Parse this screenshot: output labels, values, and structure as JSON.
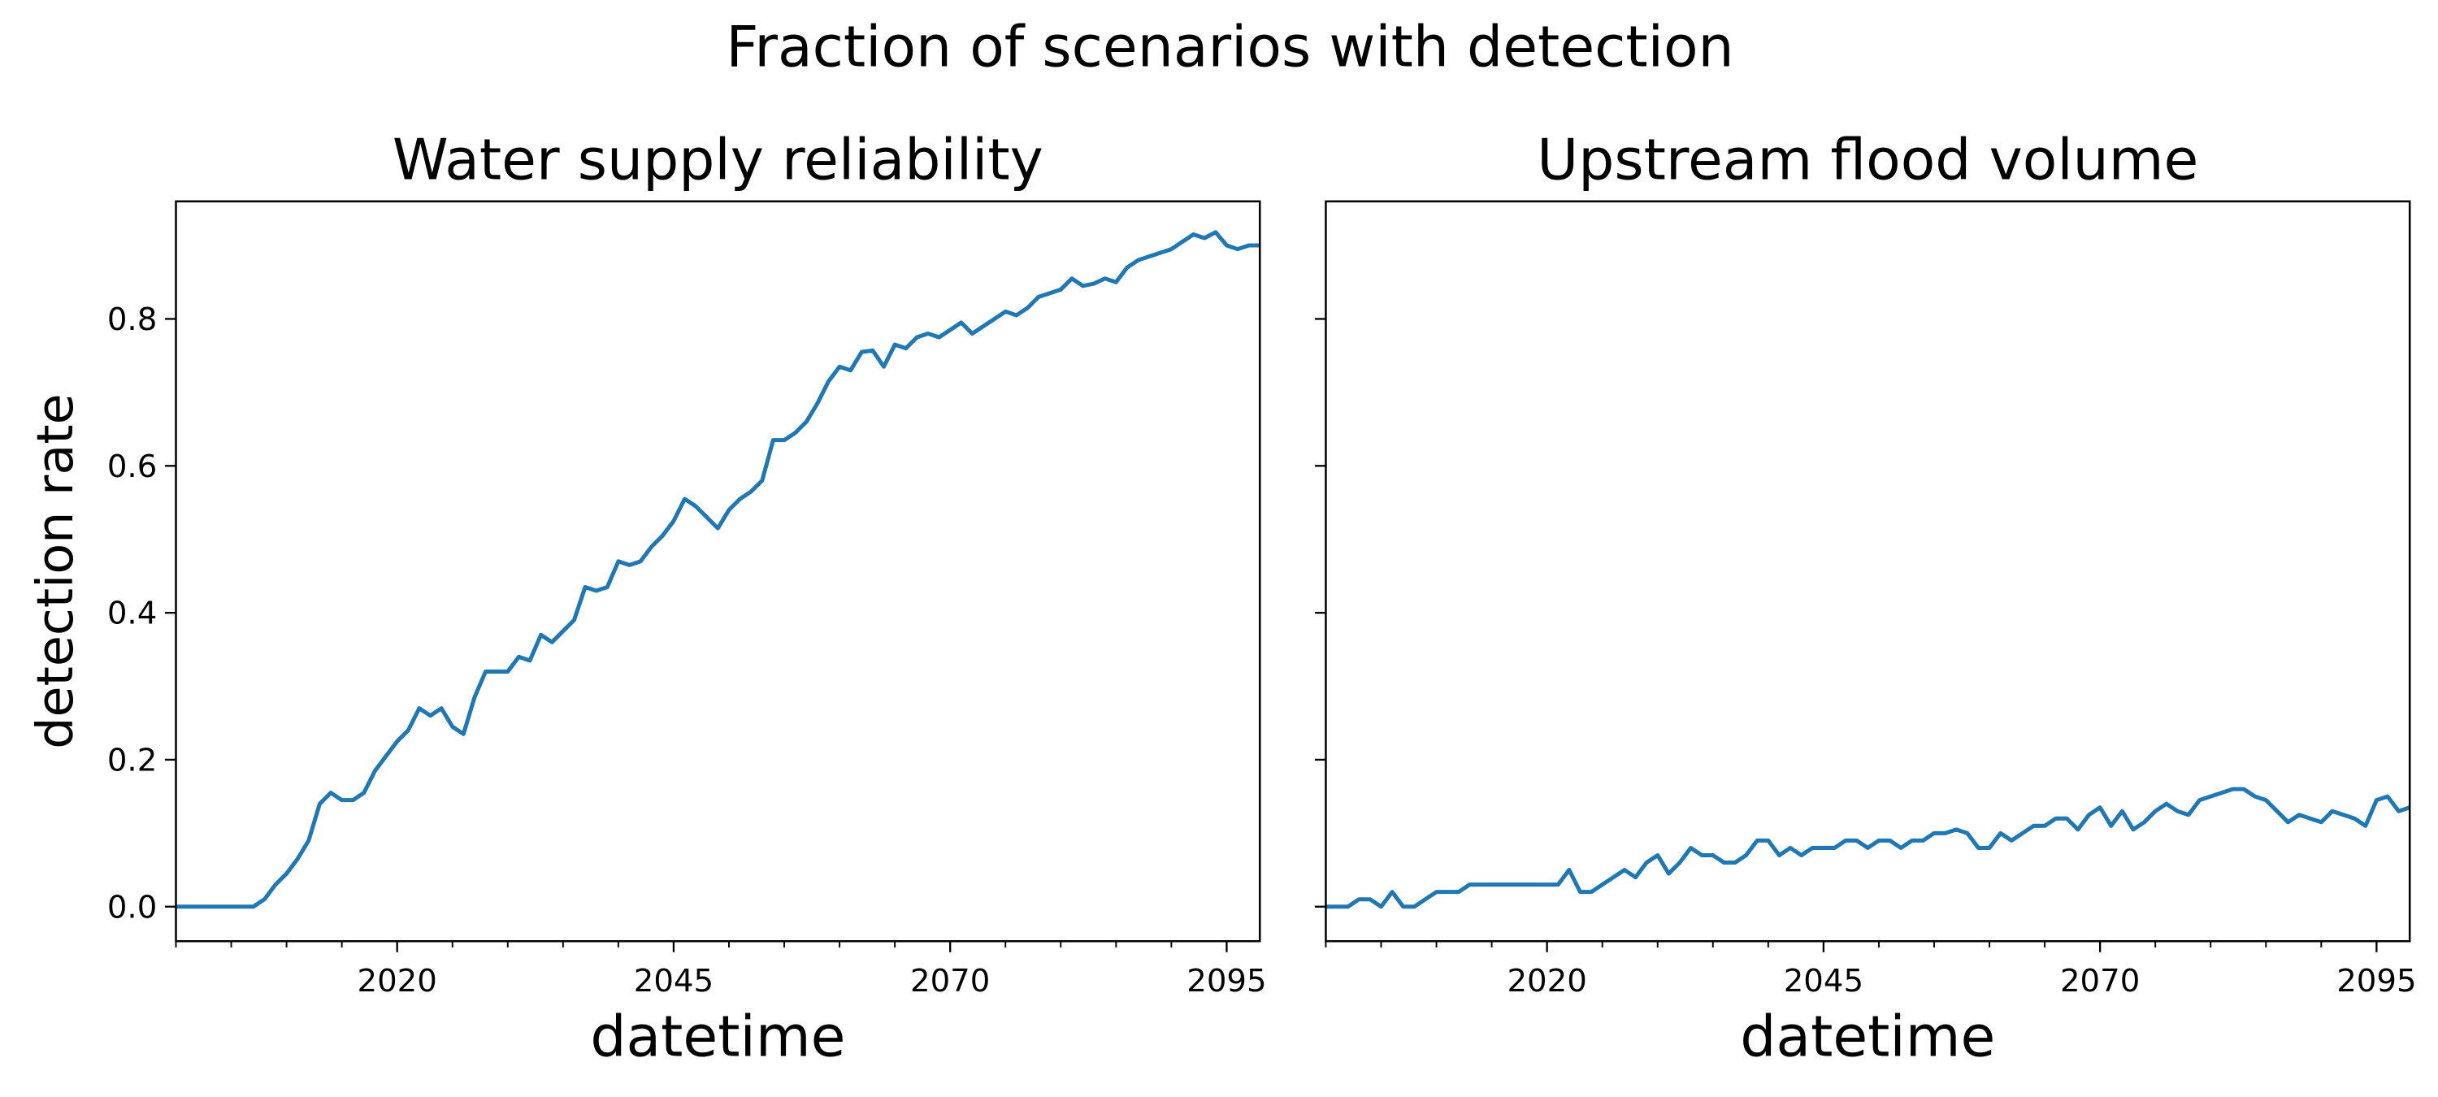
{
  "title": "Fraction of scenarios with detection",
  "chart_data": [
    {
      "type": "line",
      "title": "Water supply reliability",
      "xlabel": "datetime",
      "ylabel": "detection rate",
      "x": [
        2000,
        2001,
        2002,
        2003,
        2004,
        2005,
        2006,
        2007,
        2008,
        2009,
        2010,
        2011,
        2012,
        2013,
        2014,
        2015,
        2016,
        2017,
        2018,
        2019,
        2020,
        2021,
        2022,
        2023,
        2024,
        2025,
        2026,
        2027,
        2028,
        2029,
        2030,
        2031,
        2032,
        2033,
        2034,
        2035,
        2036,
        2037,
        2038,
        2039,
        2040,
        2041,
        2042,
        2043,
        2044,
        2045,
        2046,
        2047,
        2048,
        2049,
        2050,
        2051,
        2052,
        2053,
        2054,
        2055,
        2056,
        2057,
        2058,
        2059,
        2060,
        2061,
        2062,
        2063,
        2064,
        2065,
        2066,
        2067,
        2068,
        2069,
        2070,
        2071,
        2072,
        2073,
        2074,
        2075,
        2076,
        2077,
        2078,
        2079,
        2080,
        2081,
        2082,
        2083,
        2084,
        2085,
        2086,
        2087,
        2088,
        2089,
        2090,
        2091,
        2092,
        2093,
        2094,
        2095,
        2096,
        2097,
        2098
      ],
      "series": [
        {
          "name": "detection rate",
          "color": "#1f77b4",
          "values": [
            0,
            0,
            0,
            0,
            0,
            0,
            0,
            0,
            0.01,
            0.03,
            0.045,
            0.065,
            0.09,
            0.14,
            0.155,
            0.145,
            0.145,
            0.155,
            0.185,
            0.205,
            0.225,
            0.24,
            0.27,
            0.26,
            0.27,
            0.245,
            0.235,
            0.285,
            0.32,
            0.32,
            0.32,
            0.34,
            0.335,
            0.37,
            0.36,
            0.375,
            0.39,
            0.435,
            0.43,
            0.435,
            0.47,
            0.465,
            0.47,
            0.49,
            0.505,
            0.525,
            0.555,
            0.545,
            0.53,
            0.515,
            0.54,
            0.555,
            0.565,
            0.58,
            0.635,
            0.635,
            0.645,
            0.66,
            0.685,
            0.715,
            0.735,
            0.73,
            0.755,
            0.757,
            0.735,
            0.765,
            0.76,
            0.775,
            0.78,
            0.775,
            0.785,
            0.795,
            0.78,
            0.79,
            0.8,
            0.81,
            0.805,
            0.815,
            0.83,
            0.835,
            0.84,
            0.855,
            0.845,
            0.848,
            0.855,
            0.85,
            0.87,
            0.88,
            0.885,
            0.89,
            0.895,
            0.905,
            0.915,
            0.91,
            0.918,
            0.9,
            0.895,
            0.9,
            0.9
          ]
        }
      ],
      "xlim": [
        2000,
        2098
      ],
      "xticks": [
        2020,
        2045,
        2070,
        2095
      ],
      "xminorticks": [
        2000,
        2005,
        2010,
        2015,
        2025,
        2030,
        2035,
        2040,
        2050,
        2055,
        2060,
        2065,
        2075,
        2080,
        2085,
        2090
      ],
      "ylim": [
        -0.047,
        0.96
      ],
      "yticks": [
        {
          "value": 0,
          "label": "0.0"
        },
        0.2,
        0.4,
        0.6,
        0.8
      ],
      "show_ytick_labels": true
    },
    {
      "type": "line",
      "title": "Upstream flood volume",
      "xlabel": "datetime",
      "x": [
        2000,
        2001,
        2002,
        2003,
        2004,
        2005,
        2006,
        2007,
        2008,
        2009,
        2010,
        2011,
        2012,
        2013,
        2014,
        2015,
        2016,
        2017,
        2018,
        2019,
        2020,
        2021,
        2022,
        2023,
        2024,
        2025,
        2026,
        2027,
        2028,
        2029,
        2030,
        2031,
        2032,
        2033,
        2034,
        2035,
        2036,
        2037,
        2038,
        2039,
        2040,
        2041,
        2042,
        2043,
        2044,
        2045,
        2046,
        2047,
        2048,
        2049,
        2050,
        2051,
        2052,
        2053,
        2054,
        2055,
        2056,
        2057,
        2058,
        2059,
        2060,
        2061,
        2062,
        2063,
        2064,
        2065,
        2066,
        2067,
        2068,
        2069,
        2070,
        2071,
        2072,
        2073,
        2074,
        2075,
        2076,
        2077,
        2078,
        2079,
        2080,
        2081,
        2082,
        2083,
        2084,
        2085,
        2086,
        2087,
        2088,
        2089,
        2090,
        2091,
        2092,
        2093,
        2094,
        2095,
        2096,
        2097,
        2098
      ],
      "series": [
        {
          "name": "detection rate",
          "color": "#1f77b4",
          "values": [
            0,
            0,
            0,
            0.01,
            0.01,
            0,
            0.02,
            0,
            0,
            0.01,
            0.02,
            0.02,
            0.02,
            0.03,
            0.03,
            0.03,
            0.03,
            0.03,
            0.03,
            0.03,
            0.03,
            0.03,
            0.05,
            0.02,
            0.02,
            0.03,
            0.04,
            0.05,
            0.04,
            0.06,
            0.07,
            0.045,
            0.06,
            0.08,
            0.07,
            0.07,
            0.06,
            0.06,
            0.07,
            0.09,
            0.09,
            0.07,
            0.08,
            0.07,
            0.08,
            0.08,
            0.08,
            0.09,
            0.09,
            0.08,
            0.09,
            0.09,
            0.08,
            0.09,
            0.09,
            0.1,
            0.1,
            0.105,
            0.1,
            0.08,
            0.08,
            0.1,
            0.09,
            0.1,
            0.11,
            0.11,
            0.12,
            0.12,
            0.105,
            0.125,
            0.135,
            0.11,
            0.13,
            0.105,
            0.115,
            0.13,
            0.14,
            0.13,
            0.125,
            0.145,
            0.15,
            0.155,
            0.16,
            0.16,
            0.15,
            0.145,
            0.13,
            0.115,
            0.125,
            0.12,
            0.115,
            0.13,
            0.125,
            0.12,
            0.11,
            0.145,
            0.15,
            0.13,
            0.135
          ]
        }
      ],
      "xlim": [
        2000,
        2098
      ],
      "xticks": [
        2020,
        2045,
        2070,
        2095
      ],
      "xminorticks": [
        2000,
        2005,
        2010,
        2015,
        2025,
        2030,
        2035,
        2040,
        2050,
        2055,
        2060,
        2065,
        2075,
        2080,
        2085,
        2090
      ],
      "ylim": [
        -0.047,
        0.96
      ],
      "yticks": [
        0,
        0.2,
        0.4,
        0.6,
        0.8
      ],
      "show_ytick_labels": false
    }
  ]
}
